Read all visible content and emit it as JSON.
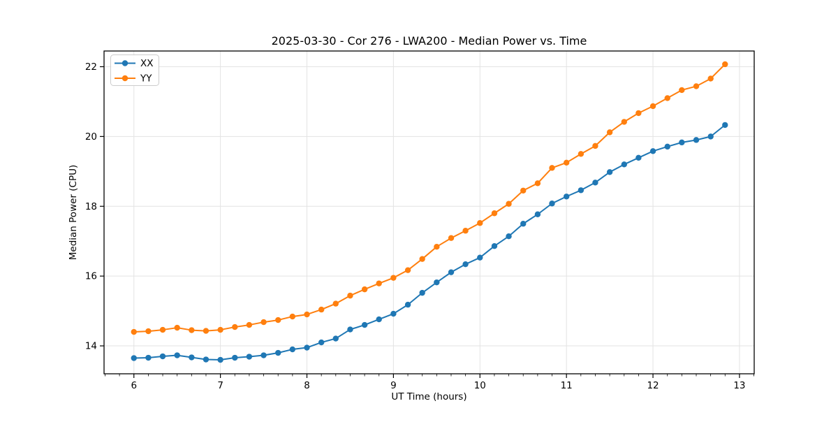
{
  "figure": {
    "background": "#ffffff"
  },
  "chart_data": {
    "type": "line",
    "title": "2025-03-30 - Cor 276 - LWA200 - Median Power vs. Time",
    "xlabel": "UT Time (hours)",
    "ylabel": "Median Power (CPU)",
    "xlim": [
      5.655,
      13.17
    ],
    "ylim": [
      13.2,
      22.45
    ],
    "x_ticks": [
      6,
      7,
      8,
      9,
      10,
      11,
      12,
      13
    ],
    "y_ticks": [
      14,
      16,
      18,
      20,
      22
    ],
    "x_minor_divisions": 6,
    "grid": true,
    "grid_color": "#e3e3e3",
    "spine_color": "#000000",
    "legend_position": "upper-left",
    "marker": "circle",
    "x": [
      6.0,
      6.167,
      6.333,
      6.5,
      6.667,
      6.833,
      7.0,
      7.167,
      7.333,
      7.5,
      7.667,
      7.833,
      8.0,
      8.167,
      8.333,
      8.5,
      8.667,
      8.833,
      9.0,
      9.167,
      9.333,
      9.5,
      9.667,
      9.833,
      10.0,
      10.167,
      10.333,
      10.5,
      10.667,
      10.833,
      11.0,
      11.167,
      11.333,
      11.5,
      11.667,
      11.833,
      12.0,
      12.167,
      12.333,
      12.5,
      12.667,
      12.833
    ],
    "series": [
      {
        "name": "XX",
        "color": "#1f77b4",
        "values": [
          13.65,
          13.66,
          13.7,
          13.73,
          13.67,
          13.61,
          13.6,
          13.66,
          13.69,
          13.73,
          13.8,
          13.9,
          13.95,
          14.1,
          14.21,
          14.47,
          14.6,
          14.76,
          14.92,
          15.18,
          15.52,
          15.82,
          16.11,
          16.34,
          16.53,
          16.86,
          17.14,
          17.5,
          17.77,
          18.08,
          18.28,
          18.46,
          18.68,
          18.98,
          19.2,
          19.39,
          19.58,
          19.71,
          19.83,
          19.9,
          20.0,
          20.33
        ]
      },
      {
        "name": "YY",
        "color": "#ff7f0e",
        "values": [
          14.4,
          14.42,
          14.46,
          14.52,
          14.45,
          14.43,
          14.46,
          14.54,
          14.6,
          14.68,
          14.74,
          14.84,
          14.9,
          15.04,
          15.21,
          15.44,
          15.62,
          15.79,
          15.95,
          16.17,
          16.49,
          16.84,
          17.09,
          17.3,
          17.52,
          17.8,
          18.07,
          18.45,
          18.66,
          19.1,
          19.25,
          19.5,
          19.73,
          20.12,
          20.42,
          20.67,
          20.87,
          21.1,
          21.33,
          21.44,
          21.66,
          22.07
        ]
      }
    ]
  }
}
